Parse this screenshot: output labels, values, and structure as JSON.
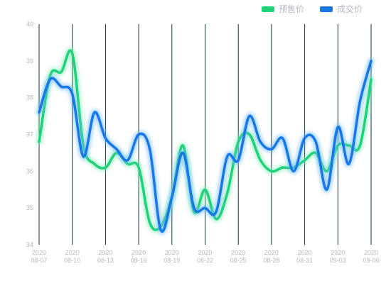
{
  "legend": {
    "presale_label": "预售价",
    "deal_label": "成交价"
  },
  "colors": {
    "presale": "#1fd27a",
    "presale_glow": "#7ff0b2",
    "deal": "#1877e6",
    "deal_glow": "#6ab8ff",
    "vline": "#17313d",
    "tick_text": "#b5b9c2"
  },
  "chart_data": {
    "type": "line",
    "title": "",
    "xlabel": "",
    "ylabel": "",
    "ylim": [
      34,
      40
    ],
    "yticks": [
      34,
      35,
      36,
      37,
      38,
      39,
      40
    ],
    "grid": "vertical lines at each x tick",
    "legend_position": "top-right",
    "x_ticks": [
      {
        "year": "2020",
        "date": "08-07"
      },
      {
        "year": "2020",
        "date": "08-10"
      },
      {
        "year": "2020",
        "date": "08-13"
      },
      {
        "year": "2020",
        "date": "08-16"
      },
      {
        "year": "2020",
        "date": "08-19"
      },
      {
        "year": "2020",
        "date": "08-22"
      },
      {
        "year": "2020",
        "date": "08-25"
      },
      {
        "year": "2020",
        "date": "08-28"
      },
      {
        "year": "2020",
        "date": "08-31"
      },
      {
        "year": "2020",
        "date": "09-03"
      },
      {
        "year": "2020",
        "date": "09-06"
      }
    ],
    "x": [
      "08-07",
      "08-08",
      "08-09",
      "08-10",
      "08-11",
      "08-12",
      "08-13",
      "08-14",
      "08-15",
      "08-16",
      "08-17",
      "08-18",
      "08-19",
      "08-20",
      "08-21",
      "08-22",
      "08-23",
      "08-24",
      "08-25",
      "08-26",
      "08-27",
      "08-28",
      "08-29",
      "08-30",
      "08-31",
      "09-01",
      "09-02",
      "09-03",
      "09-04",
      "09-05",
      "09-06"
    ],
    "series": [
      {
        "name": "预售价",
        "color": "#1fd27a",
        "values": [
          36.8,
          38.6,
          38.7,
          39.2,
          36.7,
          36.2,
          36.1,
          36.5,
          36.2,
          36.1,
          34.6,
          34.5,
          35.3,
          36.7,
          34.9,
          35.5,
          34.7,
          35.4,
          36.8,
          37.0,
          36.3,
          36.0,
          36.1,
          36.1,
          36.3,
          36.5,
          36.0,
          36.7,
          36.7,
          36.7,
          38.5
        ]
      },
      {
        "name": "成交价",
        "color": "#1877e6",
        "values": [
          37.6,
          38.5,
          38.3,
          38.1,
          36.4,
          37.6,
          36.9,
          36.6,
          36.3,
          37.0,
          36.6,
          34.4,
          35.3,
          36.5,
          35.0,
          35.0,
          34.9,
          36.4,
          36.3,
          37.5,
          36.8,
          36.6,
          36.9,
          36.0,
          36.9,
          36.8,
          35.5,
          37.2,
          36.2,
          37.9,
          39.0
        ]
      }
    ]
  }
}
